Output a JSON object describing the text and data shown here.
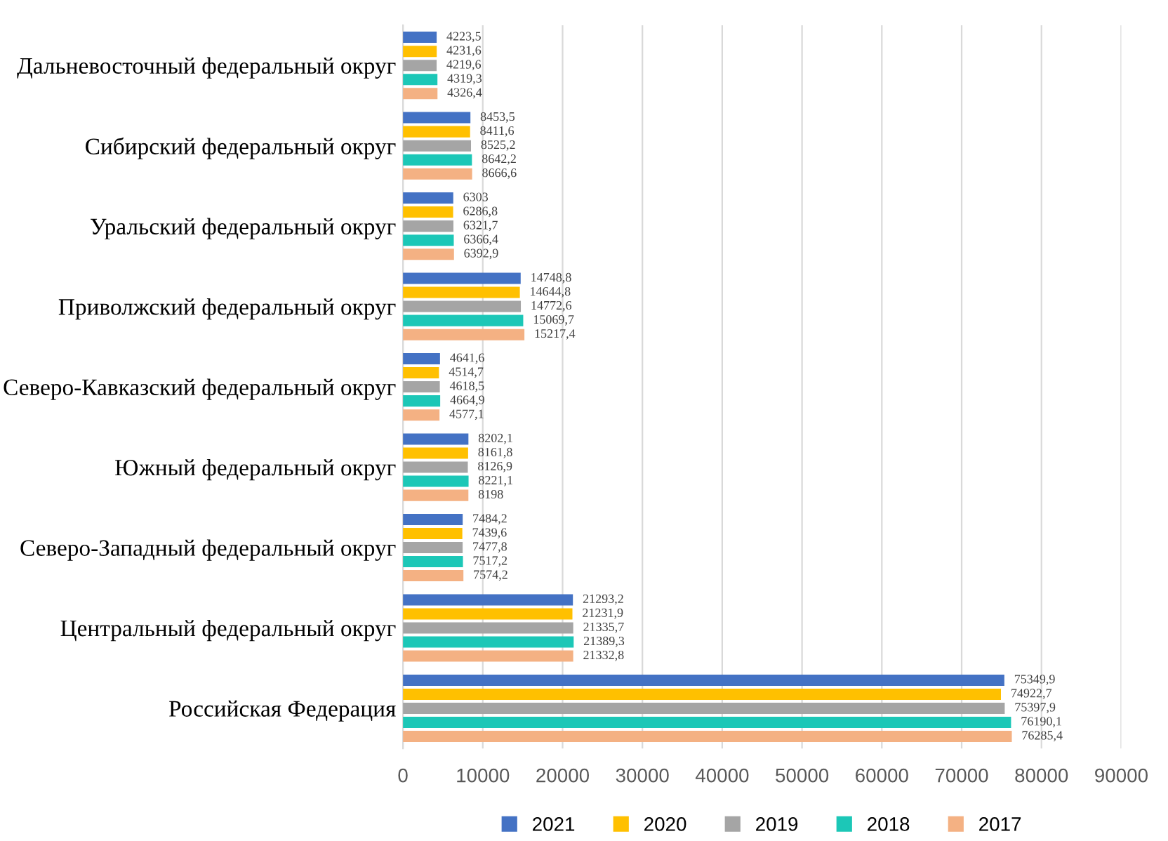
{
  "chart_data": {
    "type": "bar",
    "orientation": "horizontal",
    "categories": [
      "Дальневосточный федеральный округ",
      "Сибирский федеральный округ",
      "Уральский федеральный округ",
      "Приволжский федеральный округ",
      "Северо-Кавказский федеральный округ",
      "Южный федеральный округ",
      "Северо-Западный федеральный округ",
      "Центральный федеральный округ",
      "Российская Федерация"
    ],
    "series": [
      {
        "name": "2021",
        "color": "#4472c4",
        "values": [
          4223.5,
          8453.5,
          6303,
          14748.8,
          4641.6,
          8202.1,
          7484.2,
          21293.2,
          75349.9
        ],
        "value_labels": [
          "4223,5",
          "8453,5",
          "6303",
          "14748,8",
          "4641,6",
          "8202,1",
          "7484,2",
          "21293,2",
          "75349,9"
        ]
      },
      {
        "name": "2020",
        "color": "#ffc000",
        "values": [
          4231.6,
          8411.6,
          6286.8,
          14644.8,
          4514.7,
          8161.8,
          7439.6,
          21231.9,
          74922.7
        ],
        "value_labels": [
          "4231,6",
          "8411,6",
          "6286,8",
          "14644,8",
          "4514,7",
          "8161,8",
          "7439,6",
          "21231,9",
          "74922,7"
        ]
      },
      {
        "name": "2019",
        "color": "#a5a5a5",
        "values": [
          4219.6,
          8525.2,
          6321.7,
          14772.6,
          4618.5,
          8126.9,
          7477.8,
          21335.7,
          75397.9
        ],
        "value_labels": [
          "4219,6",
          "8525,2",
          "6321,7",
          "14772,6",
          "4618,5",
          "8126,9",
          "7477,8",
          "21335,7",
          "75397,9"
        ]
      },
      {
        "name": "2018",
        "color": "#1cc7b7",
        "values": [
          4319.3,
          8642.2,
          6366.4,
          15069.7,
          4664.9,
          8221.1,
          7517.2,
          21389.3,
          76190.1
        ],
        "value_labels": [
          "4319,3",
          "8642,2",
          "6366,4",
          "15069,7",
          "4664,9",
          "8221,1",
          "7517,2",
          "21389,3",
          "76190,1"
        ]
      },
      {
        "name": "2017",
        "color": "#f4b183",
        "values": [
          4326.4,
          8666.6,
          6392.9,
          15217.4,
          4577.1,
          8198,
          7574.2,
          21332.8,
          76285.4
        ],
        "value_labels": [
          "4326,4",
          "8666,6",
          "6392,9",
          "15217,4",
          "4577,1",
          "8198",
          "7574,2",
          "21332,8",
          "76285,4"
        ]
      }
    ],
    "xlim": [
      0,
      90000
    ],
    "xticks": [
      0,
      10000,
      20000,
      30000,
      40000,
      50000,
      60000,
      70000,
      80000,
      90000
    ],
    "grid": "x",
    "legend": "bottom"
  }
}
